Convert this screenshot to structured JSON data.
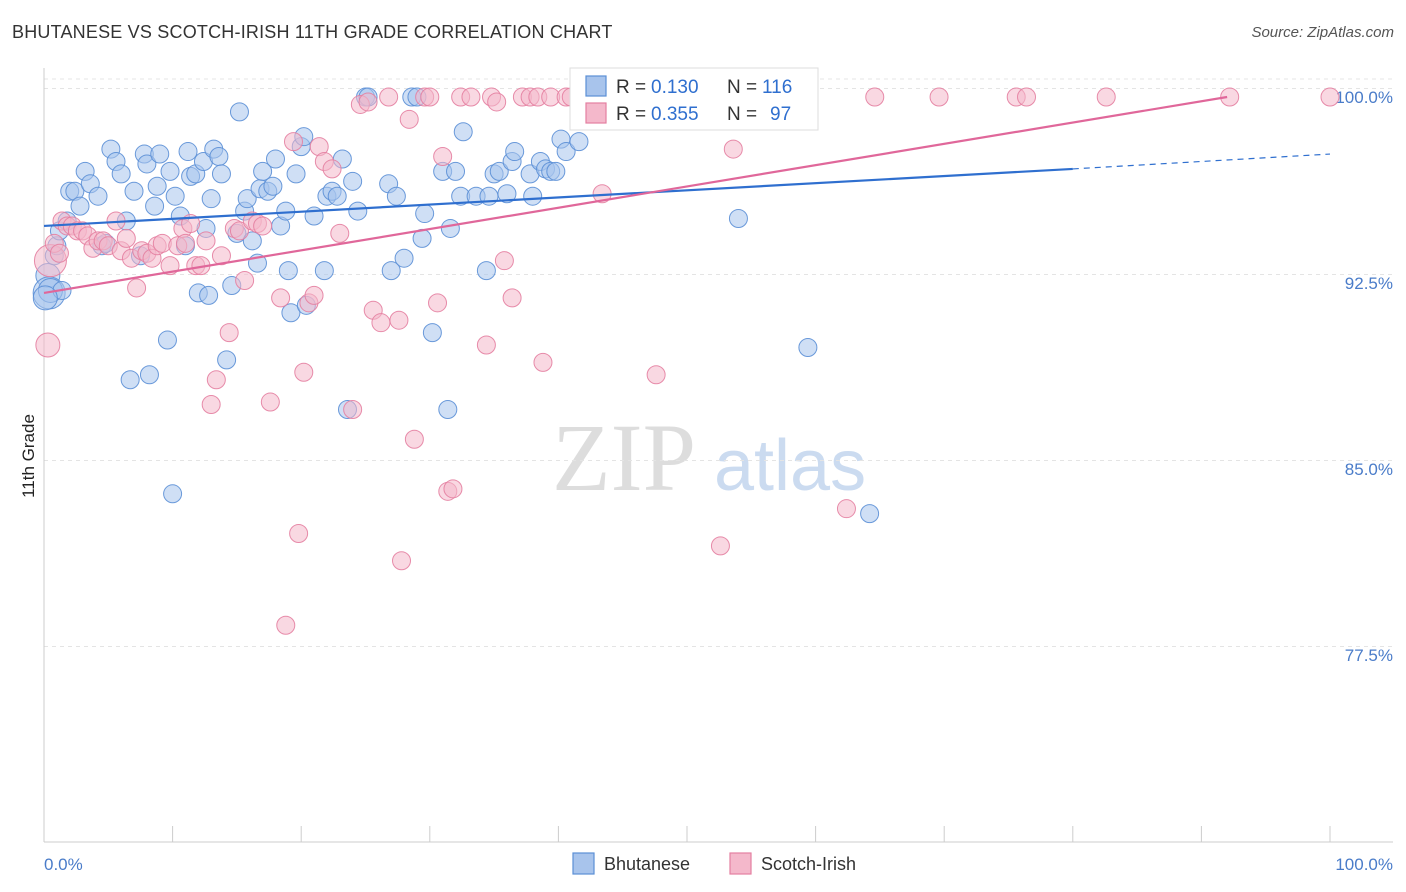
{
  "title": "BHUTANESE VS SCOTCH-IRISH 11TH GRADE CORRELATION CHART",
  "source": "Source: ZipAtlas.com",
  "watermark": {
    "zip": "ZIP",
    "atlas": "atlas"
  },
  "legend_box": {
    "rows": [
      {
        "r_label": "R =",
        "r_value": "0.130",
        "n_label": "N =",
        "n_value": "116"
      },
      {
        "r_label": "R =",
        "r_value": "0.355",
        "n_label": "N =",
        "n_value": "97"
      }
    ]
  },
  "bottom_legend": [
    "Bhutanese",
    "Scotch-Irish"
  ],
  "colors": {
    "blue_fill": "#a8c4ec",
    "blue_stroke": "#5b8fd6",
    "blue_line": "#2f6fcf",
    "pink_fill": "#f4b8cb",
    "pink_stroke": "#e47fa1",
    "pink_line": "#e0679a",
    "tick_text": "#4a7cc9",
    "grid": "#e4e4e4"
  },
  "chart_data": {
    "type": "scatter",
    "title": "BHUTANESE VS SCOTCH-IRISH 11TH GRADE CORRELATION CHART",
    "xlabel": "",
    "ylabel": "11th Grade",
    "xlim": [
      0,
      100
    ],
    "ylim": [
      70.0,
      101.5
    ],
    "x_tick_labels": [
      "0.0%",
      "100.0%"
    ],
    "y_ticks": [
      77.5,
      85.0,
      92.5,
      100.0
    ],
    "y_tick_labels": [
      "77.5%",
      "85.0%",
      "92.5%",
      "100.0%"
    ],
    "grid": true,
    "legend_position": "top-center",
    "series": [
      {
        "name": "Bhutanese",
        "R": 0.13,
        "N": 116,
        "trend": {
          "x": [
            0,
            80,
            100
          ],
          "y": [
            94.8,
            97.1,
            97.7
          ],
          "solid_until_x": 80
        },
        "points": [
          [
            0.3,
            92.8
          ],
          [
            0.4,
            92.1
          ],
          [
            0.5,
            92.2
          ],
          [
            0.8,
            93.6
          ],
          [
            1.0,
            94.0
          ],
          [
            1.2,
            94.6
          ],
          [
            1.4,
            92.2
          ],
          [
            1.8,
            95.0
          ],
          [
            2.0,
            96.2
          ],
          [
            2.4,
            96.2
          ],
          [
            2.8,
            95.6
          ],
          [
            3.2,
            97.0
          ],
          [
            3.6,
            96.5
          ],
          [
            4.2,
            96.0
          ],
          [
            4.5,
            94.0
          ],
          [
            4.8,
            94.1
          ],
          [
            5.2,
            97.9
          ],
          [
            5.6,
            97.4
          ],
          [
            6.0,
            96.9
          ],
          [
            6.4,
            95.0
          ],
          [
            6.7,
            88.6
          ],
          [
            7.0,
            96.2
          ],
          [
            7.5,
            93.6
          ],
          [
            7.8,
            97.7
          ],
          [
            8.0,
            97.3
          ],
          [
            8.2,
            88.8
          ],
          [
            8.6,
            95.6
          ],
          [
            8.8,
            96.4
          ],
          [
            9.0,
            97.7
          ],
          [
            9.6,
            90.2
          ],
          [
            9.8,
            97.0
          ],
          [
            10.0,
            84.0
          ],
          [
            10.2,
            96.0
          ],
          [
            10.6,
            95.2
          ],
          [
            11.0,
            94.0
          ],
          [
            11.2,
            97.8
          ],
          [
            11.4,
            96.8
          ],
          [
            11.8,
            96.9
          ],
          [
            12.0,
            92.1
          ],
          [
            12.4,
            97.4
          ],
          [
            12.6,
            94.7
          ],
          [
            12.8,
            92.0
          ],
          [
            13.0,
            95.9
          ],
          [
            13.2,
            97.9
          ],
          [
            13.6,
            97.6
          ],
          [
            13.8,
            96.9
          ],
          [
            14.2,
            89.4
          ],
          [
            14.6,
            92.4
          ],
          [
            15.0,
            94.5
          ],
          [
            15.2,
            99.4
          ],
          [
            15.6,
            95.4
          ],
          [
            15.8,
            95.9
          ],
          [
            16.2,
            94.2
          ],
          [
            16.6,
            93.3
          ],
          [
            16.8,
            96.3
          ],
          [
            17.0,
            97.0
          ],
          [
            17.4,
            96.2
          ],
          [
            17.8,
            96.4
          ],
          [
            18.0,
            97.5
          ],
          [
            18.4,
            94.8
          ],
          [
            18.8,
            95.4
          ],
          [
            19.0,
            93.0
          ],
          [
            19.2,
            91.3
          ],
          [
            19.6,
            96.9
          ],
          [
            20.0,
            98.0
          ],
          [
            20.2,
            98.4
          ],
          [
            20.4,
            91.6
          ],
          [
            21.0,
            95.2
          ],
          [
            21.8,
            93.0
          ],
          [
            22.0,
            96.0
          ],
          [
            22.4,
            96.2
          ],
          [
            22.8,
            96.0
          ],
          [
            23.2,
            97.5
          ],
          [
            23.6,
            87.4
          ],
          [
            24.0,
            96.6
          ],
          [
            24.4,
            95.4
          ],
          [
            25.0,
            100.0
          ],
          [
            25.2,
            100.0
          ],
          [
            26.8,
            96.5
          ],
          [
            27.0,
            93.0
          ],
          [
            27.4,
            96.0
          ],
          [
            28.0,
            93.5
          ],
          [
            28.6,
            100.0
          ],
          [
            29.0,
            100.0
          ],
          [
            29.4,
            94.3
          ],
          [
            29.6,
            95.3
          ],
          [
            30.2,
            90.5
          ],
          [
            31.0,
            97.0
          ],
          [
            31.4,
            87.4
          ],
          [
            31.6,
            94.7
          ],
          [
            32.0,
            97.0
          ],
          [
            32.4,
            96.0
          ],
          [
            32.6,
            98.6
          ],
          [
            33.6,
            96.0
          ],
          [
            34.4,
            93.0
          ],
          [
            34.6,
            96.0
          ],
          [
            35.0,
            96.9
          ],
          [
            35.4,
            97.0
          ],
          [
            36.0,
            96.1
          ],
          [
            36.4,
            97.4
          ],
          [
            36.6,
            97.8
          ],
          [
            37.8,
            96.9
          ],
          [
            38.0,
            96.0
          ],
          [
            38.6,
            97.4
          ],
          [
            39.0,
            97.1
          ],
          [
            39.4,
            97.0
          ],
          [
            39.8,
            97.0
          ],
          [
            40.2,
            98.3
          ],
          [
            40.6,
            97.8
          ],
          [
            41.6,
            98.2
          ],
          [
            41.8,
            100.0
          ],
          [
            42.0,
            100.0
          ],
          [
            42.4,
            100.0
          ],
          [
            53.4,
            100.0
          ],
          [
            53.6,
            100.0
          ],
          [
            54.0,
            95.1
          ],
          [
            59.4,
            89.9
          ],
          [
            64.2,
            83.2
          ],
          [
            0.1,
            91.9
          ]
        ]
      },
      {
        "name": "Scotch-Irish",
        "R": 0.355,
        "N": 97,
        "trend": {
          "x": [
            0,
            92
          ],
          "y": [
            92.1,
            100.0
          ],
          "solid_until_x": 92
        },
        "points": [
          [
            0.3,
            90.0
          ],
          [
            0.5,
            93.4
          ],
          [
            0.8,
            94.1
          ],
          [
            1.2,
            93.7
          ],
          [
            1.4,
            95.0
          ],
          [
            1.8,
            94.8
          ],
          [
            2.2,
            94.8
          ],
          [
            2.6,
            94.6
          ],
          [
            3.0,
            94.6
          ],
          [
            3.4,
            94.4
          ],
          [
            3.8,
            93.9
          ],
          [
            4.2,
            94.2
          ],
          [
            4.6,
            94.2
          ],
          [
            5.0,
            94.0
          ],
          [
            5.6,
            95.0
          ],
          [
            6.0,
            93.8
          ],
          [
            6.4,
            94.3
          ],
          [
            6.8,
            93.5
          ],
          [
            7.2,
            92.3
          ],
          [
            7.6,
            93.8
          ],
          [
            8.0,
            93.7
          ],
          [
            8.4,
            93.5
          ],
          [
            8.8,
            94.0
          ],
          [
            9.2,
            94.1
          ],
          [
            9.8,
            93.2
          ],
          [
            10.4,
            94.0
          ],
          [
            10.8,
            94.7
          ],
          [
            11.0,
            94.1
          ],
          [
            11.4,
            94.9
          ],
          [
            11.8,
            93.2
          ],
          [
            12.2,
            93.2
          ],
          [
            12.6,
            94.2
          ],
          [
            13.0,
            87.6
          ],
          [
            13.4,
            88.6
          ],
          [
            13.8,
            93.6
          ],
          [
            14.4,
            90.5
          ],
          [
            14.8,
            94.7
          ],
          [
            15.2,
            94.6
          ],
          [
            15.6,
            92.6
          ],
          [
            16.2,
            95.0
          ],
          [
            16.6,
            94.9
          ],
          [
            17.0,
            94.8
          ],
          [
            17.6,
            87.7
          ],
          [
            18.4,
            91.9
          ],
          [
            18.8,
            78.7
          ],
          [
            19.4,
            98.2
          ],
          [
            19.8,
            82.4
          ],
          [
            20.2,
            88.9
          ],
          [
            20.6,
            91.7
          ],
          [
            21.0,
            92.0
          ],
          [
            21.4,
            98.0
          ],
          [
            21.8,
            97.4
          ],
          [
            22.4,
            97.1
          ],
          [
            23.0,
            94.5
          ],
          [
            24.0,
            87.4
          ],
          [
            24.6,
            99.7
          ],
          [
            25.2,
            99.8
          ],
          [
            25.6,
            91.4
          ],
          [
            26.2,
            90.9
          ],
          [
            26.8,
            100.0
          ],
          [
            27.6,
            91.0
          ],
          [
            27.8,
            81.3
          ],
          [
            28.4,
            99.1
          ],
          [
            28.8,
            86.2
          ],
          [
            29.6,
            100.0
          ],
          [
            30.0,
            100.0
          ],
          [
            30.6,
            91.7
          ],
          [
            31.0,
            97.6
          ],
          [
            31.4,
            84.1
          ],
          [
            31.8,
            84.2
          ],
          [
            32.4,
            100.0
          ],
          [
            33.2,
            100.0
          ],
          [
            34.4,
            90.0
          ],
          [
            34.8,
            100.0
          ],
          [
            35.2,
            99.8
          ],
          [
            35.8,
            93.4
          ],
          [
            36.4,
            91.9
          ],
          [
            37.2,
            100.0
          ],
          [
            37.8,
            100.0
          ],
          [
            38.4,
            100.0
          ],
          [
            38.8,
            89.3
          ],
          [
            39.4,
            100.0
          ],
          [
            40.6,
            100.0
          ],
          [
            41.0,
            100.0
          ],
          [
            42.4,
            100.0
          ],
          [
            43.0,
            100.0
          ],
          [
            43.4,
            96.1
          ],
          [
            47.6,
            88.8
          ],
          [
            52.6,
            81.9
          ],
          [
            53.6,
            97.9
          ],
          [
            55.6,
            100.0
          ],
          [
            57.4,
            100.0
          ],
          [
            62.4,
            83.4
          ],
          [
            64.6,
            100.0
          ],
          [
            69.6,
            100.0
          ],
          [
            75.6,
            100.0
          ],
          [
            76.4,
            100.0
          ],
          [
            82.6,
            100.0
          ],
          [
            92.2,
            100.0
          ],
          [
            100.0,
            100.0
          ]
        ]
      }
    ]
  }
}
